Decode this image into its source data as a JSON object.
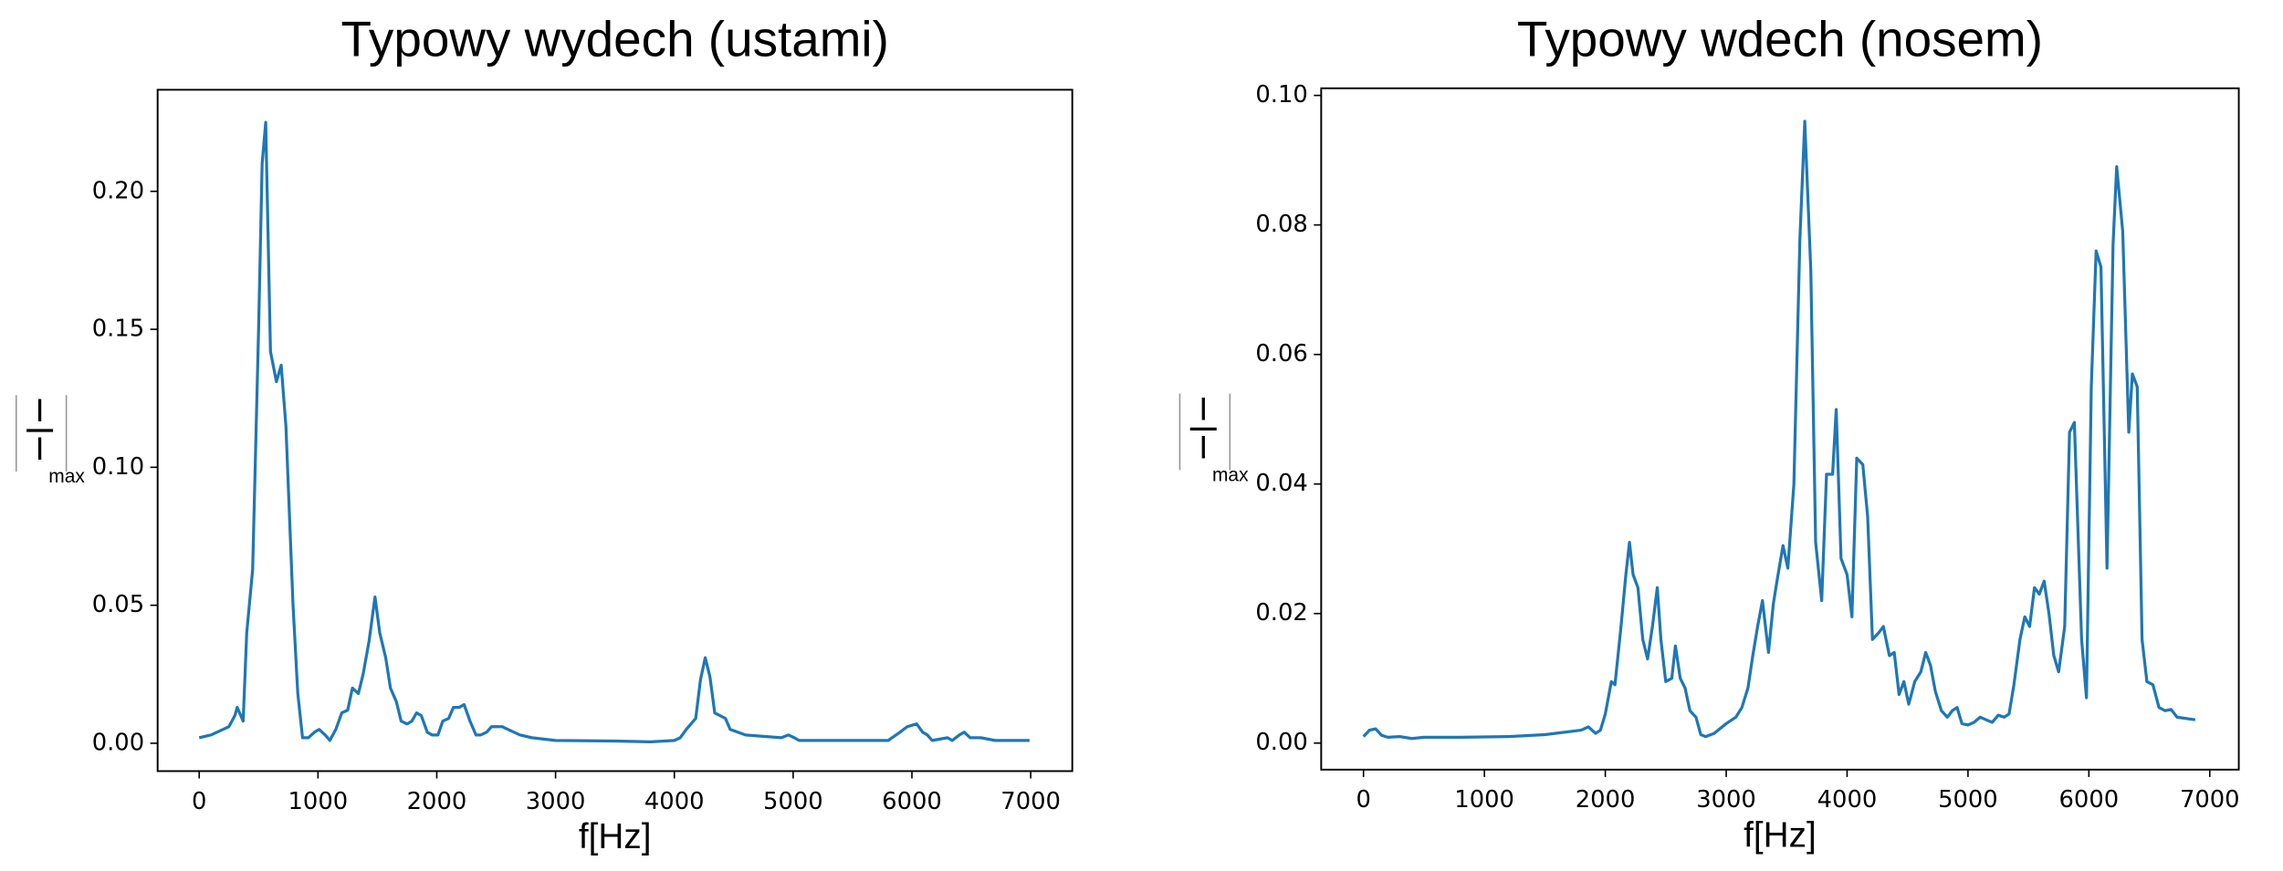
{
  "chart_data": [
    {
      "type": "line",
      "title": "Typowy wydech (ustami)",
      "xlabel": "f[Hz]",
      "ylabel": {
        "numerator": "I",
        "denominator": "I",
        "subscript": "max"
      },
      "color": "#1f77b4",
      "x": [
        0,
        100,
        200,
        250,
        300,
        320,
        370,
        400,
        450,
        500,
        530,
        560,
        600,
        650,
        690,
        730,
        790,
        830,
        870,
        920,
        970,
        1010,
        1060,
        1100,
        1150,
        1200,
        1250,
        1290,
        1340,
        1380,
        1430,
        1480,
        1520,
        1570,
        1610,
        1660,
        1700,
        1750,
        1790,
        1830,
        1870,
        1920,
        1960,
        2010,
        2050,
        2100,
        2140,
        2190,
        2230,
        2280,
        2330,
        2370,
        2420,
        2460,
        2510,
        2550,
        2600,
        2700,
        2800,
        3000,
        3500,
        3800,
        4000,
        4050,
        4100,
        4180,
        4220,
        4260,
        4300,
        4340,
        4430,
        4470,
        4600,
        4900,
        4960,
        5010,
        5050,
        5200,
        5500,
        5800,
        5900,
        5960,
        6040,
        6090,
        6130,
        6170,
        6300,
        6340,
        6400,
        6440,
        6490,
        6580,
        6700,
        6990
      ],
      "values": [
        0.002,
        0.003,
        0.005,
        0.006,
        0.01,
        0.013,
        0.008,
        0.04,
        0.063,
        0.15,
        0.21,
        0.225,
        0.142,
        0.131,
        0.137,
        0.115,
        0.05,
        0.018,
        0.002,
        0.002,
        0.004,
        0.005,
        0.003,
        0.001,
        0.005,
        0.011,
        0.012,
        0.02,
        0.018,
        0.025,
        0.037,
        0.053,
        0.04,
        0.031,
        0.02,
        0.015,
        0.008,
        0.007,
        0.008,
        0.011,
        0.01,
        0.004,
        0.003,
        0.003,
        0.008,
        0.009,
        0.013,
        0.013,
        0.014,
        0.008,
        0.003,
        0.003,
        0.004,
        0.006,
        0.006,
        0.006,
        0.005,
        0.003,
        0.002,
        0.001,
        0.0008,
        0.0005,
        0.001,
        0.002,
        0.005,
        0.009,
        0.023,
        0.031,
        0.024,
        0.011,
        0.009,
        0.005,
        0.003,
        0.002,
        0.003,
        0.002,
        0.001,
        0.001,
        0.001,
        0.001,
        0.004,
        0.006,
        0.007,
        0.004,
        0.003,
        0.001,
        0.002,
        0.001,
        0.003,
        0.004,
        0.002,
        0.002,
        0.001,
        0.001
      ],
      "xlim": [
        -350,
        7350
      ],
      "ylim": [
        -0.0101,
        0.2368
      ],
      "xticks": [
        0,
        1000,
        2000,
        3000,
        4000,
        5000,
        6000,
        7000
      ],
      "yticks": [
        {
          "value": 0,
          "label": "0.00"
        },
        {
          "value": 0.05,
          "label": "0.05"
        },
        {
          "value": 0.1,
          "label": "0.10"
        },
        {
          "value": 0.15,
          "label": "0.15"
        },
        {
          "value": 0.2,
          "label": "0.20"
        }
      ]
    },
    {
      "type": "line",
      "title": "Typowy wdech (nosem)",
      "xlabel": "f[Hz]",
      "ylabel": {
        "numerator": "I",
        "denominator": "I",
        "subscript": "max"
      },
      "color": "#1f77b4",
      "x": [
        0,
        50,
        100,
        150,
        200,
        300,
        400,
        500,
        800,
        1200,
        1500,
        1800,
        1860,
        1920,
        1960,
        2000,
        2050,
        2080,
        2130,
        2170,
        2200,
        2230,
        2270,
        2310,
        2350,
        2390,
        2430,
        2460,
        2500,
        2550,
        2580,
        2620,
        2660,
        2700,
        2750,
        2790,
        2830,
        2900,
        3000,
        3080,
        3130,
        3180,
        3220,
        3260,
        3300,
        3350,
        3390,
        3420,
        3470,
        3510,
        3560,
        3610,
        3650,
        3700,
        3740,
        3790,
        3830,
        3880,
        3910,
        3950,
        4000,
        4040,
        4080,
        4130,
        4170,
        4210,
        4260,
        4300,
        4350,
        4390,
        4430,
        4470,
        4510,
        4560,
        4610,
        4650,
        4690,
        4730,
        4780,
        4830,
        4870,
        4910,
        4950,
        5000,
        5050,
        5100,
        5150,
        5200,
        5250,
        5300,
        5340,
        5380,
        5430,
        5470,
        5510,
        5550,
        5590,
        5630,
        5670,
        5710,
        5750,
        5800,
        5840,
        5880,
        5940,
        5980,
        6020,
        6060,
        6100,
        6150,
        6200,
        6230,
        6280,
        6330,
        6360,
        6400,
        6440,
        6480,
        6530,
        6580,
        6630,
        6680,
        6730,
        6880
      ],
      "values": [
        0.001,
        0.002,
        0.0022,
        0.0012,
        0.0009,
        0.001,
        0.0007,
        0.0009,
        0.0009,
        0.001,
        0.0013,
        0.002,
        0.0025,
        0.0015,
        0.002,
        0.0045,
        0.0095,
        0.009,
        0.018,
        0.026,
        0.031,
        0.026,
        0.024,
        0.016,
        0.013,
        0.018,
        0.024,
        0.016,
        0.0095,
        0.01,
        0.015,
        0.01,
        0.0085,
        0.005,
        0.004,
        0.0013,
        0.001,
        0.0015,
        0.003,
        0.004,
        0.0055,
        0.0085,
        0.0135,
        0.018,
        0.022,
        0.014,
        0.0215,
        0.025,
        0.0305,
        0.027,
        0.04,
        0.078,
        0.096,
        0.073,
        0.031,
        0.022,
        0.0415,
        0.0415,
        0.0515,
        0.0285,
        0.026,
        0.0195,
        0.044,
        0.043,
        0.035,
        0.016,
        0.017,
        0.018,
        0.0135,
        0.014,
        0.0075,
        0.0095,
        0.006,
        0.0095,
        0.011,
        0.014,
        0.012,
        0.008,
        0.005,
        0.004,
        0.005,
        0.0055,
        0.003,
        0.0028,
        0.0032,
        0.004,
        0.0036,
        0.0032,
        0.0043,
        0.004,
        0.0045,
        0.009,
        0.016,
        0.0195,
        0.018,
        0.024,
        0.023,
        0.025,
        0.02,
        0.0135,
        0.011,
        0.018,
        0.048,
        0.0495,
        0.016,
        0.007,
        0.055,
        0.076,
        0.0735,
        0.027,
        0.077,
        0.089,
        0.079,
        0.048,
        0.057,
        0.055,
        0.016,
        0.0095,
        0.009,
        0.0055,
        0.005,
        0.0052,
        0.004,
        0.0036
      ],
      "xlim": [
        -350,
        7240
      ],
      "ylim": [
        -0.0041,
        0.1011
      ],
      "xticks": [
        0,
        1000,
        2000,
        3000,
        4000,
        5000,
        6000,
        7000
      ],
      "yticks": [
        {
          "value": 0,
          "label": "0.00"
        },
        {
          "value": 0.02,
          "label": "0.02"
        },
        {
          "value": 0.04,
          "label": "0.04"
        },
        {
          "value": 0.06,
          "label": "0.06"
        },
        {
          "value": 0.08,
          "label": "0.08"
        },
        {
          "value": 0.1,
          "label": "0.10"
        }
      ]
    }
  ]
}
